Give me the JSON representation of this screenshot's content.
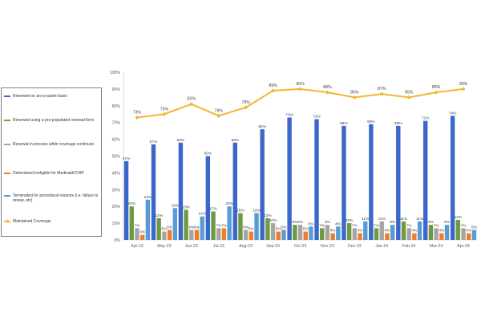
{
  "chart_data": {
    "type": "bar+line",
    "categories": [
      "Apr-23",
      "May-23",
      "Jun-23",
      "Jul-23",
      "Aug-23",
      "Sep-23",
      "Oct-23",
      "Nov-23",
      "Dec-23",
      "Jan-24",
      "Feb-24",
      "Mar-24",
      "Apr-24"
    ],
    "ylim": [
      0,
      100
    ],
    "yticks": [
      "0%",
      "10%",
      "20%",
      "30%",
      "40%",
      "50%",
      "60%",
      "70%",
      "80%",
      "90%",
      "100%"
    ],
    "grid": false,
    "legend_position": "left",
    "series": [
      {
        "name": "Renewed on an ex-parte basis",
        "type": "bar",
        "color": "#3a67c9",
        "values": [
          47,
          57,
          58,
          50,
          58,
          66,
          73,
          72,
          68,
          69,
          68,
          71,
          74
        ],
        "labels": [
          "47%",
          "57%",
          "58%",
          "50%",
          "58%",
          "66%",
          "73%",
          "72%",
          "68%",
          "69%",
          "68%",
          "71%",
          "74%"
        ]
      },
      {
        "name": "Renewed using a pre-populated renewal form",
        "type": "bar",
        "color": "#6f9a43",
        "values": [
          20,
          13,
          18,
          17,
          16,
          13,
          9,
          7,
          10,
          7,
          11,
          9,
          12
        ],
        "labels": [
          "20%",
          "13%",
          "18%",
          "17%",
          "16%",
          "13%",
          "9%",
          "7%",
          "10%",
          "7%",
          "11%",
          "9%",
          "12%"
        ]
      },
      {
        "name": "Renewal in process while coverage continues",
        "type": "bar",
        "color": "#a5a5a5",
        "values": [
          7,
          5,
          6,
          7,
          6,
          10,
          9,
          9,
          7,
          11,
          7,
          7,
          7
        ],
        "labels": [
          "7%",
          "5%",
          "6%",
          "7%",
          "6%",
          "10%",
          "9%",
          "9%",
          "7%",
          "11%",
          "7%",
          "7%",
          "7%"
        ]
      },
      {
        "name": "Determined ineligible for Medicaid/CHIP",
        "type": "bar",
        "color": "#ed7d31",
        "values": [
          3,
          6,
          6,
          7,
          5,
          5,
          5,
          4,
          4,
          4,
          4,
          4,
          4
        ],
        "labels": [
          "3%",
          "6%",
          "6%",
          "7%",
          "5%",
          "5%",
          "5%",
          "4%",
          "4%",
          "4%",
          "4%",
          "4%",
          "4%"
        ]
      },
      {
        "name": "Terminated for procedural reasons (i.e. failure to renew, etc)",
        "type": "bar",
        "color": "#5b9bd5",
        "values": [
          24,
          19,
          14,
          20,
          16,
          6,
          8,
          8,
          11,
          9,
          11,
          9,
          6
        ],
        "labels": [
          "24%",
          "19%",
          "14%",
          "20%",
          "16%",
          "6%",
          "8%",
          "8%",
          "11%",
          "9%",
          "11%",
          "9%",
          "6%"
        ]
      },
      {
        "name": "Maintained Coverage",
        "type": "line",
        "color": "#f2b632",
        "values": [
          73,
          75,
          81,
          74,
          79,
          89,
          90,
          88,
          85,
          87,
          85,
          88,
          90
        ],
        "labels": [
          "73%",
          "75%",
          "81%",
          "74%",
          "79%",
          "89%",
          "90%",
          "88%",
          "85%",
          "87%",
          "85%",
          "88%",
          "90%"
        ]
      }
    ]
  }
}
